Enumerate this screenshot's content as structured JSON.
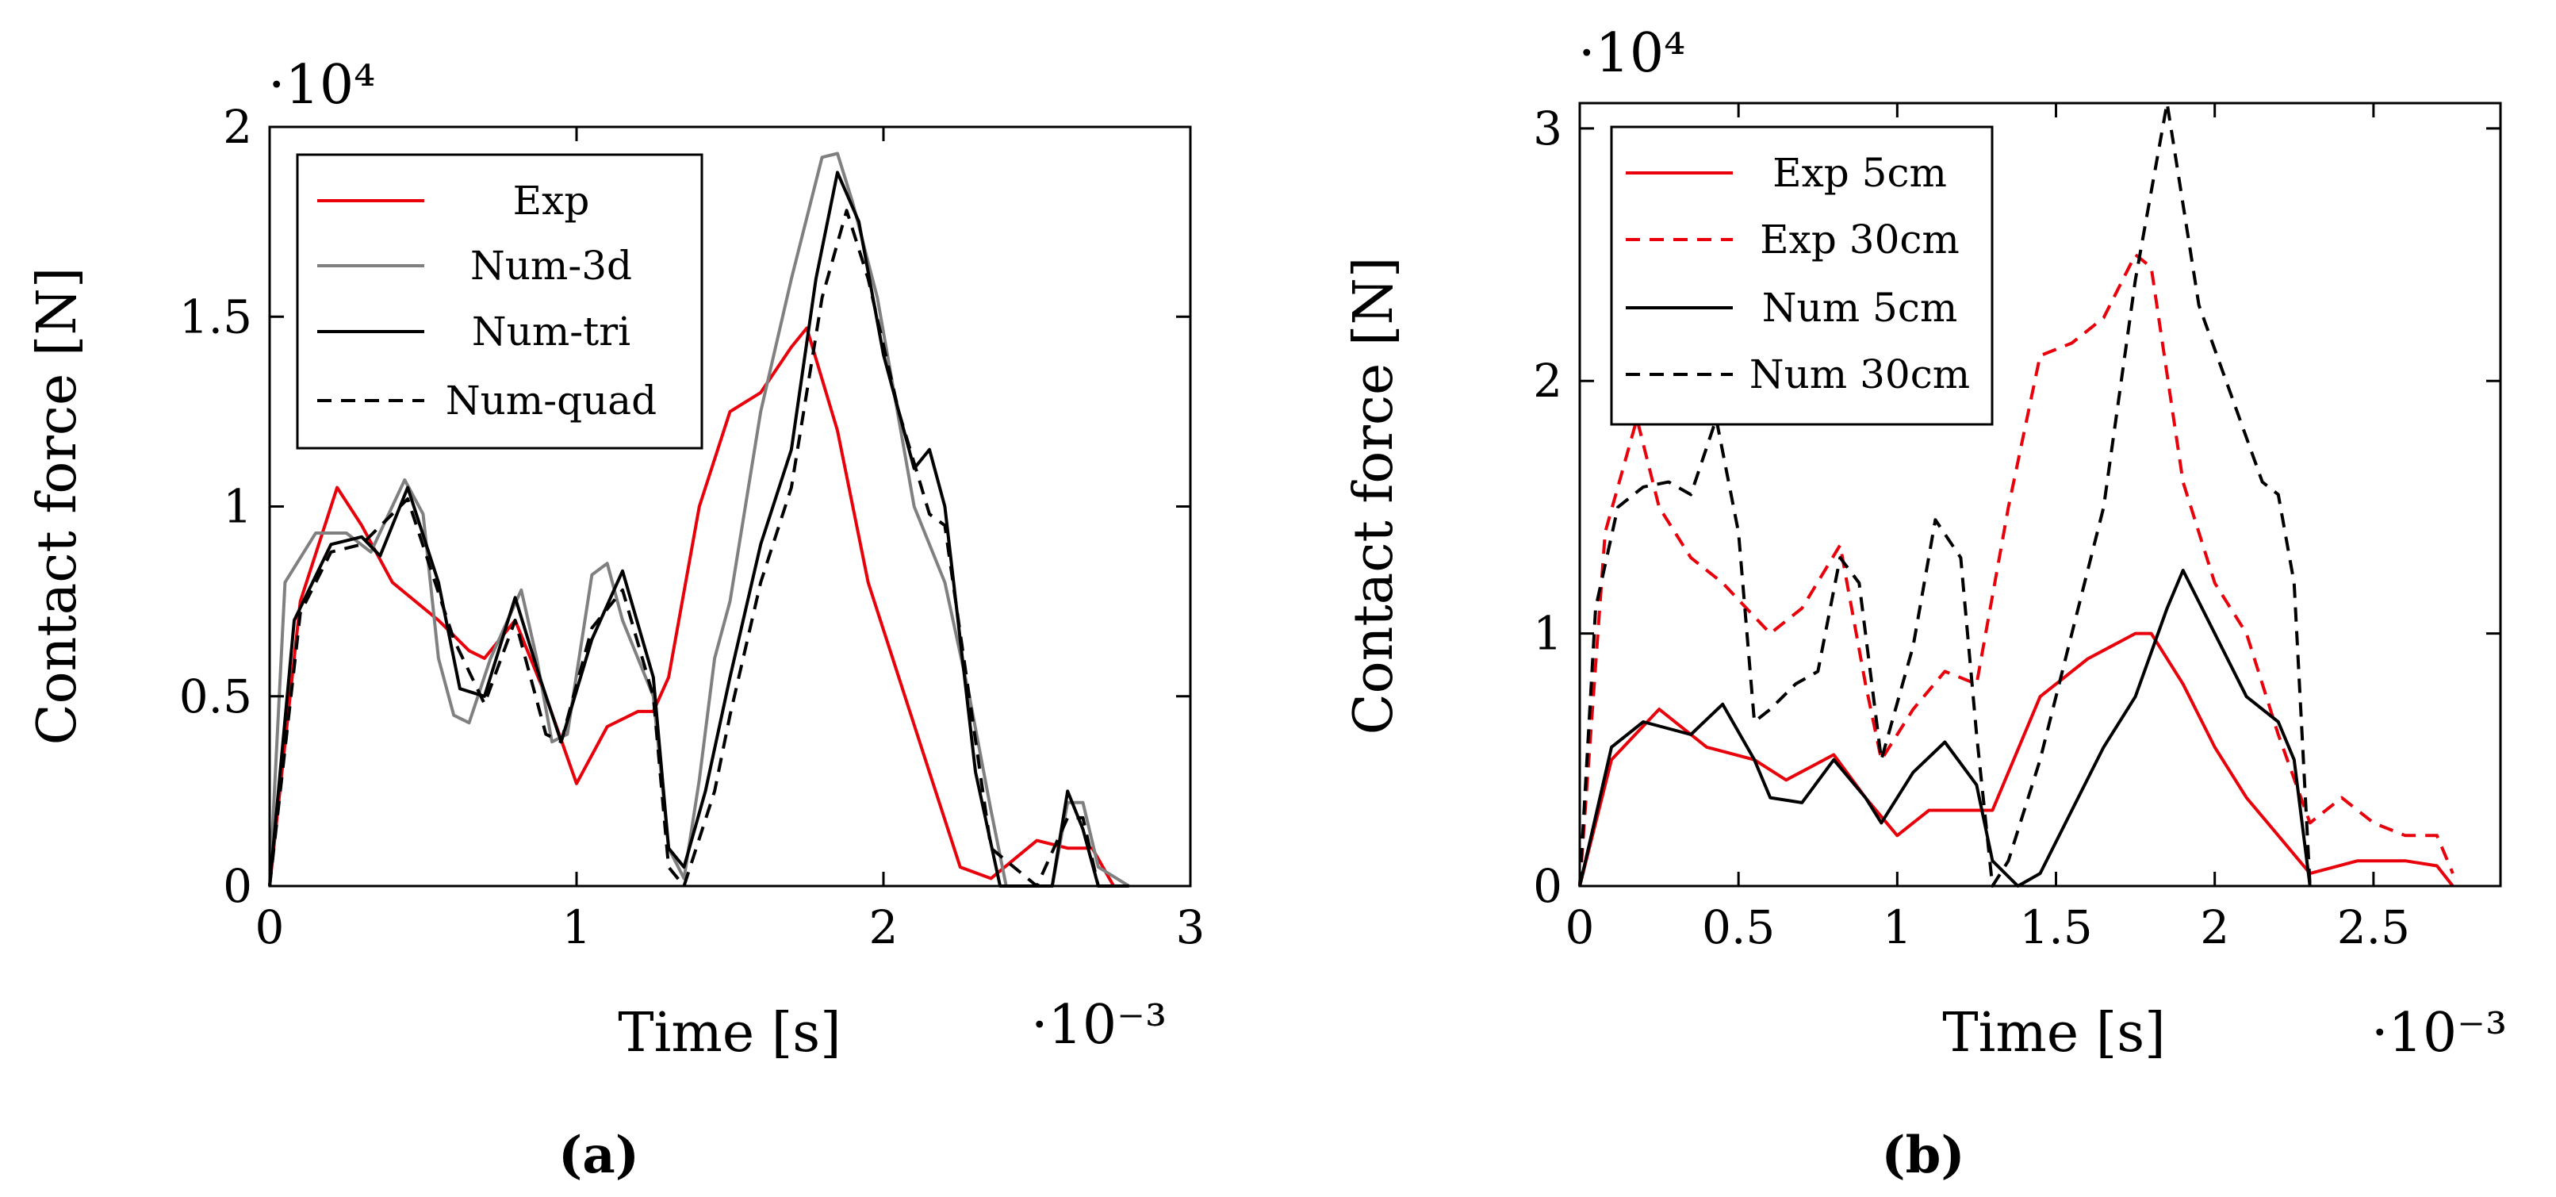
{
  "chart_data": [
    {
      "type": "line",
      "panel": "a",
      "caption": "(a)",
      "xlabel": "Time [s]",
      "ylabel": "Contact force [N]",
      "x_multiplier": "·10⁻³",
      "y_multiplier": "·10⁴",
      "xlim": [
        0,
        3
      ],
      "ylim": [
        0,
        2
      ],
      "xticks": [
        0,
        1,
        2,
        3
      ],
      "xtick_labels": [
        "0",
        "1",
        "2",
        "3"
      ],
      "yticks": [
        0,
        0.5,
        1,
        1.5,
        2
      ],
      "ytick_labels": [
        "0",
        "0.5",
        "1",
        "1.5",
        "2"
      ],
      "grid": false,
      "legend_position": "top-left",
      "series": [
        {
          "name": "Exp",
          "color": "#e8000b",
          "dash": "solid",
          "x": [
            0,
            0.1,
            0.22,
            0.3,
            0.4,
            0.55,
            0.65,
            0.7,
            0.8,
            0.9,
            1.0,
            1.1,
            1.2,
            1.25,
            1.3,
            1.4,
            1.5,
            1.6,
            1.7,
            1.75,
            1.85,
            1.95,
            2.05,
            2.15,
            2.25,
            2.35,
            2.5,
            2.6,
            2.68,
            2.75
          ],
          "y": [
            0,
            0.75,
            1.05,
            0.95,
            0.8,
            0.7,
            0.62,
            0.6,
            0.7,
            0.5,
            0.27,
            0.42,
            0.46,
            0.46,
            0.55,
            1.0,
            1.25,
            1.3,
            1.42,
            1.47,
            1.2,
            0.8,
            0.55,
            0.3,
            0.05,
            0.02,
            0.12,
            0.1,
            0.1,
            0.0
          ]
        },
        {
          "name": "Num-3d",
          "color": "#808080",
          "dash": "solid",
          "x": [
            0,
            0.05,
            0.15,
            0.25,
            0.33,
            0.44,
            0.5,
            0.55,
            0.6,
            0.65,
            0.72,
            0.82,
            0.87,
            0.92,
            0.97,
            1.05,
            1.1,
            1.15,
            1.25,
            1.3,
            1.35,
            1.4,
            1.45,
            1.5,
            1.6,
            1.7,
            1.8,
            1.85,
            1.9,
            1.98,
            2.1,
            2.2,
            2.28,
            2.35,
            2.4,
            2.55,
            2.6,
            2.65,
            2.7,
            2.8
          ],
          "y": [
            0,
            0.8,
            0.93,
            0.93,
            0.88,
            1.07,
            0.98,
            0.6,
            0.45,
            0.43,
            0.6,
            0.78,
            0.6,
            0.38,
            0.4,
            0.82,
            0.85,
            0.7,
            0.5,
            0.1,
            0.02,
            0.28,
            0.6,
            0.75,
            1.25,
            1.6,
            1.92,
            1.93,
            1.8,
            1.55,
            1.0,
            0.8,
            0.5,
            0.2,
            0.0,
            0.0,
            0.22,
            0.22,
            0.05,
            0.0
          ]
        },
        {
          "name": "Num-tri",
          "color": "#000000",
          "dash": "solid",
          "x": [
            0,
            0.08,
            0.2,
            0.3,
            0.36,
            0.45,
            0.55,
            0.62,
            0.7,
            0.8,
            0.88,
            0.95,
            1.05,
            1.15,
            1.25,
            1.3,
            1.35,
            1.42,
            1.5,
            1.6,
            1.7,
            1.78,
            1.85,
            1.92,
            2.0,
            2.1,
            2.15,
            2.2,
            2.3,
            2.38,
            2.55,
            2.6,
            2.65,
            2.7,
            2.8
          ],
          "y": [
            0,
            0.7,
            0.9,
            0.92,
            0.87,
            1.05,
            0.8,
            0.52,
            0.5,
            0.76,
            0.55,
            0.38,
            0.65,
            0.83,
            0.55,
            0.1,
            0.05,
            0.25,
            0.55,
            0.9,
            1.15,
            1.6,
            1.88,
            1.75,
            1.4,
            1.1,
            1.15,
            1.0,
            0.3,
            0.0,
            0.0,
            0.25,
            0.15,
            0.0,
            0.0
          ]
        },
        {
          "name": "Num-quad",
          "color": "#000000",
          "dash": "dashed",
          "x": [
            0,
            0.1,
            0.2,
            0.3,
            0.45,
            0.6,
            0.7,
            0.8,
            0.9,
            0.95,
            1.05,
            1.15,
            1.25,
            1.3,
            1.35,
            1.45,
            1.5,
            1.6,
            1.7,
            1.8,
            1.88,
            1.95,
            2.05,
            2.15,
            2.2,
            2.35,
            2.5,
            2.6,
            2.65,
            2.7,
            2.8
          ],
          "y": [
            0,
            0.72,
            0.88,
            0.9,
            1.02,
            0.65,
            0.48,
            0.7,
            0.4,
            0.38,
            0.68,
            0.78,
            0.5,
            0.05,
            0.0,
            0.25,
            0.45,
            0.8,
            1.05,
            1.55,
            1.78,
            1.6,
            1.25,
            0.98,
            0.95,
            0.1,
            0.0,
            0.18,
            0.18,
            0.0,
            0.0
          ]
        }
      ]
    },
    {
      "type": "line",
      "panel": "b",
      "caption": "(b)",
      "xlabel": "Time [s]",
      "ylabel": "Contact force [N]",
      "x_multiplier": "·10⁻³",
      "y_multiplier": "·10⁴",
      "xlim": [
        0,
        2.9
      ],
      "ylim": [
        0,
        3.1
      ],
      "xticks": [
        0,
        0.5,
        1,
        1.5,
        2,
        2.5
      ],
      "xtick_labels": [
        "0",
        "0.5",
        "1",
        "1.5",
        "2",
        "2.5"
      ],
      "yticks": [
        0,
        1,
        2,
        3
      ],
      "ytick_labels": [
        "0",
        "1",
        "2",
        "3"
      ],
      "grid": false,
      "legend_position": "top-left",
      "series": [
        {
          "name": "Exp 5cm",
          "color": "#e8000b",
          "dash": "solid",
          "x": [
            0,
            0.1,
            0.25,
            0.4,
            0.55,
            0.65,
            0.8,
            0.9,
            1.0,
            1.1,
            1.2,
            1.3,
            1.45,
            1.6,
            1.75,
            1.8,
            1.9,
            2.0,
            2.1,
            2.2,
            2.3,
            2.45,
            2.6,
            2.7,
            2.75
          ],
          "y": [
            0,
            0.5,
            0.7,
            0.55,
            0.5,
            0.42,
            0.52,
            0.35,
            0.2,
            0.3,
            0.3,
            0.3,
            0.75,
            0.9,
            1.0,
            1.0,
            0.8,
            0.55,
            0.35,
            0.2,
            0.05,
            0.1,
            0.1,
            0.08,
            0.0
          ]
        },
        {
          "name": "Exp 30cm",
          "color": "#e8000b",
          "dash": "dashed",
          "x": [
            0,
            0.08,
            0.18,
            0.25,
            0.35,
            0.45,
            0.6,
            0.7,
            0.82,
            0.9,
            0.95,
            1.05,
            1.15,
            1.25,
            1.35,
            1.45,
            1.55,
            1.65,
            1.75,
            1.8,
            1.9,
            2.0,
            2.1,
            2.2,
            2.3,
            2.4,
            2.5,
            2.6,
            2.7,
            2.75
          ],
          "y": [
            0,
            1.4,
            1.85,
            1.5,
            1.3,
            1.2,
            1.0,
            1.1,
            1.35,
            0.8,
            0.5,
            0.7,
            0.85,
            0.8,
            1.5,
            2.1,
            2.15,
            2.25,
            2.5,
            2.45,
            1.6,
            1.2,
            1.0,
            0.6,
            0.25,
            0.35,
            0.25,
            0.2,
            0.2,
            0.05
          ]
        },
        {
          "name": "Num 5cm",
          "color": "#000000",
          "dash": "solid",
          "x": [
            0,
            0.1,
            0.2,
            0.35,
            0.45,
            0.55,
            0.6,
            0.7,
            0.8,
            0.9,
            0.95,
            1.05,
            1.15,
            1.25,
            1.3,
            1.38,
            1.45,
            1.55,
            1.65,
            1.75,
            1.85,
            1.9,
            2.0,
            2.1,
            2.2,
            2.25,
            2.3
          ],
          "y": [
            0,
            0.55,
            0.65,
            0.6,
            0.72,
            0.5,
            0.35,
            0.33,
            0.5,
            0.35,
            0.25,
            0.45,
            0.57,
            0.4,
            0.1,
            0.0,
            0.05,
            0.3,
            0.55,
            0.75,
            1.1,
            1.25,
            1.0,
            0.75,
            0.65,
            0.5,
            0.0
          ]
        },
        {
          "name": "Num 30cm",
          "color": "#000000",
          "dash": "dashed",
          "x": [
            0,
            0.05,
            0.12,
            0.2,
            0.28,
            0.35,
            0.43,
            0.5,
            0.55,
            0.6,
            0.68,
            0.75,
            0.82,
            0.88,
            0.95,
            1.05,
            1.12,
            1.2,
            1.25,
            1.3,
            1.35,
            1.45,
            1.55,
            1.65,
            1.75,
            1.85,
            1.95,
            2.05,
            2.15,
            2.2,
            2.25,
            2.3
          ],
          "y": [
            0,
            1.1,
            1.5,
            1.58,
            1.6,
            1.55,
            1.85,
            1.4,
            0.65,
            0.7,
            0.8,
            0.85,
            1.3,
            1.2,
            0.5,
            0.95,
            1.45,
            1.3,
            0.6,
            0.0,
            0.1,
            0.5,
            1.0,
            1.5,
            2.4,
            3.1,
            2.3,
            1.95,
            1.6,
            1.55,
            1.2,
            0.0
          ]
        }
      ]
    }
  ]
}
